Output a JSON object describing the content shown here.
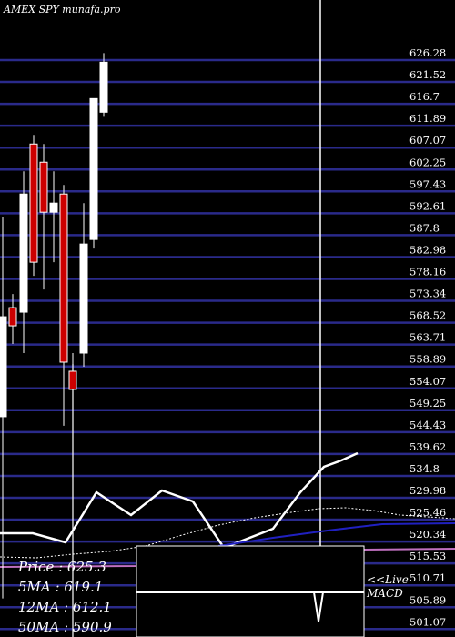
{
  "chart_data": {
    "type": "candlestick",
    "title": "AMEX  SPY munafa.pro",
    "ylim": [
      501.07,
      629.0
    ],
    "y_ticks": [
      "626.28",
      "621.52",
      "616.7",
      "611.89",
      "607.07",
      "602.25",
      "597.43",
      "592.61",
      "587.8",
      "582.98",
      "578.16",
      "573.34",
      "568.52",
      "563.71",
      "558.89",
      "554.07",
      "549.25",
      "544.43",
      "539.62",
      "534.8",
      "529.98",
      "525.46",
      "520.34",
      "515.53",
      "510.71",
      "505.89",
      "501.07"
    ],
    "candles": [
      {
        "open": 568.0,
        "high": 590.0,
        "low": 506.0,
        "close": 546.0,
        "color": "white"
      },
      {
        "open": 570.0,
        "high": 573.0,
        "low": 562.0,
        "close": 566.0,
        "color": "red"
      },
      {
        "open": 569.0,
        "high": 600.0,
        "low": 560.0,
        "close": 595.0,
        "color": "white"
      },
      {
        "open": 606.0,
        "high": 608.0,
        "low": 577.0,
        "close": 580.0,
        "color": "red"
      },
      {
        "open": 602.0,
        "high": 606.0,
        "low": 574.0,
        "close": 591.0,
        "color": "red"
      },
      {
        "open": 593.0,
        "high": 600.0,
        "low": 580.0,
        "close": 591.0,
        "color": "white"
      },
      {
        "open": 595.0,
        "high": 597.0,
        "low": 544.0,
        "close": 558.0,
        "color": "red"
      },
      {
        "open": 556.0,
        "high": 560.0,
        "low": 539.0,
        "close": 552.0,
        "color": "red"
      },
      {
        "open": 560.0,
        "high": 593.0,
        "low": 557.0,
        "close": 584.0,
        "color": "white"
      },
      {
        "open": 585.0,
        "high": 616.0,
        "low": 583.0,
        "close": 616.0,
        "color": "white"
      },
      {
        "open": 613.0,
        "high": 626.0,
        "low": 612.0,
        "close": 624.0,
        "color": "white"
      }
    ],
    "series": [
      {
        "name": "Price",
        "values": [
          625.3
        ]
      },
      {
        "name": "5MA",
        "values": [
          619.1
        ]
      },
      {
        "name": "12MA",
        "values": [
          612.1
        ]
      },
      {
        "name": "50MA",
        "values": [
          590.9
        ]
      }
    ]
  },
  "legend": {
    "price": "Price  : 625.3",
    "ma5": "5MA : 619.1",
    "ma12": "12MA : 612.1",
    "ma50": "50MA : 590.9"
  },
  "macd_label": {
    "line1": "<<Live",
    "line2": "MACD"
  }
}
